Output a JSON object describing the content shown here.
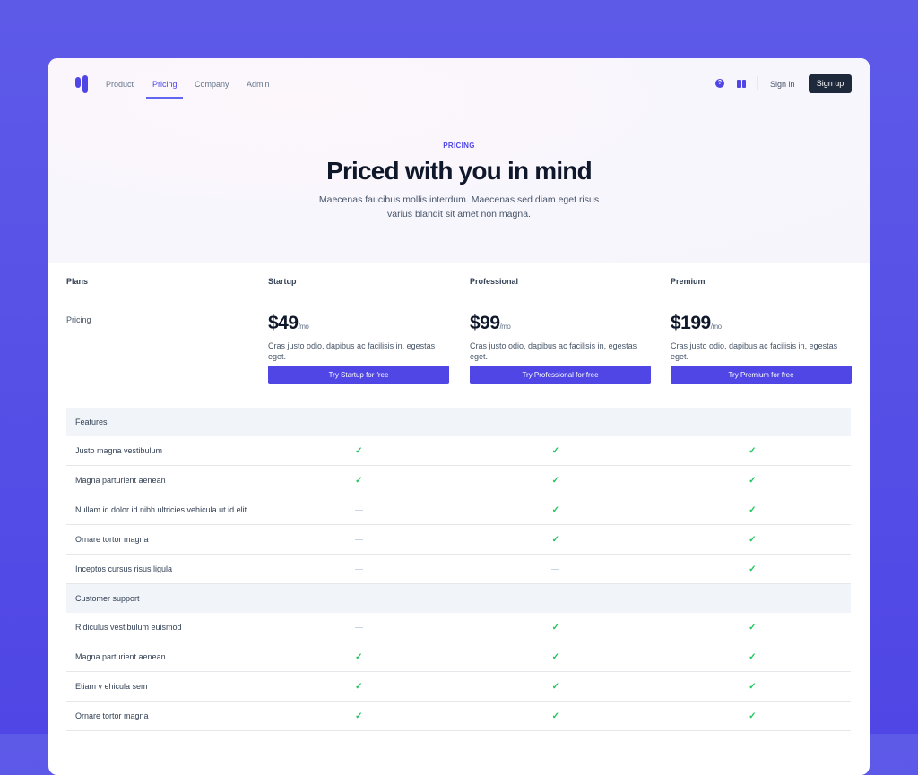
{
  "nav": {
    "links": [
      "Product",
      "Pricing",
      "Company",
      "Admin"
    ],
    "active": "Pricing",
    "sign_in": "Sign in",
    "sign_up": "Sign up",
    "icons": [
      "help-circle-icon",
      "book-icon"
    ]
  },
  "hero": {
    "eyebrow": "PRICING",
    "title": "Priced with you in mind",
    "subtitle": "Maecenas faucibus mollis interdum. Maecenas sed diam eget risus varius blandit sit amet non magna."
  },
  "table": {
    "plans_label": "Plans",
    "pricing_label": "Pricing",
    "plans": [
      {
        "name": "Startup",
        "price": "$49",
        "period": "/mo",
        "description": "Cras justo odio, dapibus ac facilisis in, egestas eget.",
        "cta": "Try Startup for free"
      },
      {
        "name": "Professional",
        "price": "$99",
        "period": "/mo",
        "description": "Cras justo odio, dapibus ac facilisis in, egestas eget.",
        "cta": "Try Professional for free"
      },
      {
        "name": "Premium",
        "price": "$199",
        "period": "/mo",
        "description": "Cras justo odio, dapibus ac facilisis in, egestas eget.",
        "cta": "Try Premium for free"
      }
    ],
    "sections": [
      {
        "name": "Features",
        "rows": [
          {
            "label": "Justo magna vestibulum",
            "values": [
              true,
              true,
              true
            ]
          },
          {
            "label": "Magna parturient aenean",
            "values": [
              true,
              true,
              true
            ]
          },
          {
            "label": "Nullam id dolor id nibh ultricies vehicula ut id elit.",
            "values": [
              false,
              true,
              true
            ]
          },
          {
            "label": "Ornare tortor magna",
            "values": [
              false,
              true,
              true
            ]
          },
          {
            "label": "Inceptos cursus risus ligula",
            "values": [
              false,
              false,
              true
            ]
          }
        ]
      },
      {
        "name": "Customer support",
        "rows": [
          {
            "label": "Ridiculus vestibulum euismod",
            "values": [
              false,
              true,
              true
            ]
          },
          {
            "label": "Magna parturient aenean",
            "values": [
              true,
              true,
              true
            ]
          },
          {
            "label": "Etiam v ehicula sem",
            "values": [
              true,
              true,
              true
            ]
          },
          {
            "label": "Ornare tortor magna",
            "values": [
              true,
              true,
              true
            ]
          }
        ]
      }
    ]
  },
  "colors": {
    "accent": "#4f46e5",
    "check": "#22c55e",
    "dark": "#1e293b"
  }
}
